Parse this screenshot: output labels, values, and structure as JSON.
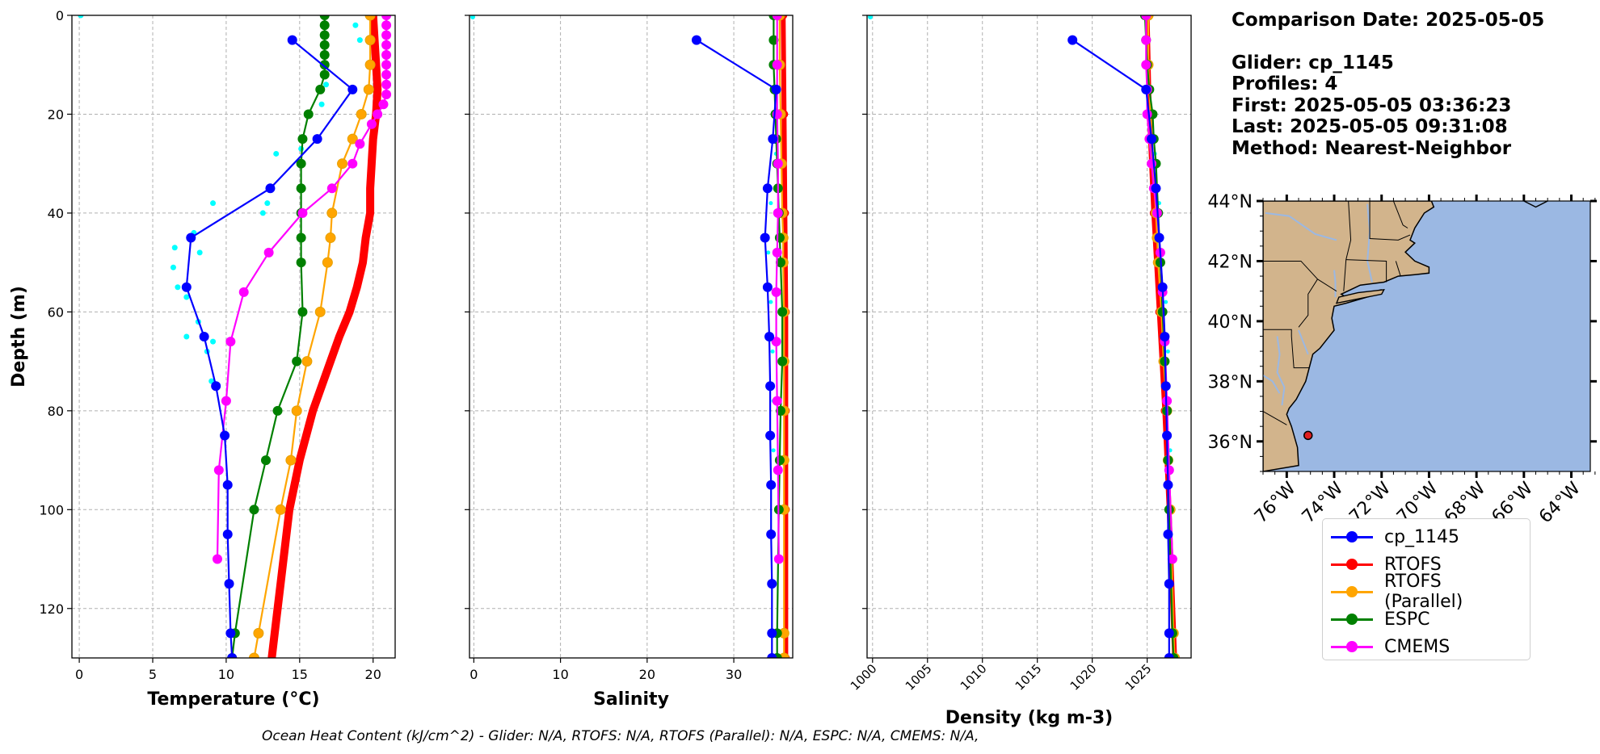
{
  "info": {
    "comparison_date": "Comparison Date: 2025-05-05",
    "glider": "Glider: cp_1145",
    "profiles": "Profiles: 4",
    "first": "First: 2025-05-05 03:36:23",
    "last": "Last: 2025-05-05 09:31:08",
    "method": "Method: Nearest-Neighbor"
  },
  "footer": "Ocean Heat Content (kJ/cm^2) - Glider: N/A,  RTOFS: N/A,  RTOFS (Parallel): N/A,  ESPC: N/A,  CMEMS: N/A,",
  "legend": [
    {
      "label": "cp_1145",
      "color": "#0000ff"
    },
    {
      "label": "RTOFS",
      "color": "#ff0000"
    },
    {
      "label": "RTOFS (Parallel)",
      "color": "#ffa500"
    },
    {
      "label": "ESPC",
      "color": "#008000"
    },
    {
      "label": "CMEMS",
      "color": "#ff00ff"
    }
  ],
  "map": {
    "lat_ticks": [
      "44°N",
      "42°N",
      "40°N",
      "38°N",
      "36°N"
    ],
    "lon_ticks": [
      "76°W",
      "74°W",
      "72°W",
      "70°W",
      "68°W",
      "66°W",
      "64°W"
    ],
    "glider_position": {
      "lon": -75.1,
      "lat": 36.2
    },
    "land_color": "#d2b48c",
    "ocean_color": "#9bb8e3"
  },
  "chart_data": [
    {
      "type": "line",
      "xlabel": "Temperature (°C)",
      "ylabel": "Depth (m)",
      "xlim": [
        -0.5,
        21.5
      ],
      "ylim": [
        130,
        0
      ],
      "x_ticks": [
        "0",
        "5",
        "10",
        "15",
        "20"
      ],
      "y_ticks": [
        "0",
        "20",
        "40",
        "60",
        "80",
        "100",
        "120"
      ],
      "grid": true,
      "series": [
        {
          "name": "cp_1145",
          "color": "#0000ff",
          "depth": [
            5,
            15,
            25,
            35,
            45,
            55,
            65,
            75,
            85,
            95,
            105,
            115,
            125,
            130
          ],
          "values": [
            14.5,
            18.6,
            16.2,
            13.0,
            7.6,
            7.3,
            8.5,
            9.3,
            9.9,
            10.1,
            10.1,
            10.2,
            10.3,
            10.4
          ]
        },
        {
          "name": "RTOFS",
          "color": "#ff0000",
          "depth": [
            0,
            5,
            10,
            15,
            20,
            25,
            30,
            35,
            40,
            45,
            50,
            55,
            60,
            65,
            70,
            80,
            90,
            100,
            115,
            125,
            130
          ],
          "values": [
            20.0,
            20.1,
            20.2,
            20.3,
            20.2,
            20.0,
            19.9,
            19.8,
            19.8,
            19.5,
            19.3,
            18.9,
            18.4,
            17.7,
            17.1,
            15.9,
            15.0,
            14.3,
            13.7,
            13.3,
            13.1
          ]
        },
        {
          "name": "RTOFS (Parallel)",
          "color": "#ffa500",
          "depth": [
            0,
            5,
            10,
            15,
            20,
            25,
            30,
            40,
            45,
            50,
            60,
            70,
            80,
            90,
            100,
            125,
            130
          ],
          "values": [
            19.8,
            19.8,
            19.8,
            19.7,
            19.2,
            18.6,
            17.9,
            17.2,
            17.1,
            16.9,
            16.4,
            15.5,
            14.8,
            14.4,
            13.7,
            12.2,
            11.9
          ]
        },
        {
          "name": "ESPC",
          "color": "#008000",
          "depth": [
            0,
            2,
            4,
            6,
            8,
            10,
            12,
            15,
            20,
            25,
            30,
            35,
            40,
            45,
            50,
            60,
            70,
            80,
            90,
            100,
            125,
            130
          ],
          "values": [
            16.7,
            16.7,
            16.7,
            16.7,
            16.7,
            16.7,
            16.7,
            16.4,
            15.6,
            15.2,
            15.1,
            15.1,
            15.1,
            15.1,
            15.1,
            15.2,
            14.8,
            13.5,
            12.7,
            11.9,
            10.6,
            10.4
          ]
        },
        {
          "name": "CMEMS",
          "color": "#ff00ff",
          "depth": [
            0,
            2,
            4,
            6,
            8,
            10,
            12,
            14,
            16,
            18,
            20,
            22,
            26,
            30,
            35,
            40,
            48,
            56,
            66,
            78,
            92,
            110
          ],
          "values": [
            20.9,
            20.9,
            20.9,
            20.9,
            20.9,
            20.9,
            20.9,
            20.9,
            20.9,
            20.7,
            20.3,
            19.9,
            19.1,
            18.6,
            17.2,
            15.2,
            12.9,
            11.2,
            10.3,
            10.0,
            9.5,
            9.4
          ]
        }
      ],
      "scatter_glider_raw": {
        "color": "#00ffff",
        "x": [
          0.1,
          18.8,
          19.1,
          16.8,
          16.5,
          13.4,
          15.1,
          15.1,
          9.1,
          12.8,
          12.5,
          7.8,
          6.5,
          8.2,
          6.4,
          6.7,
          7.3,
          8.1,
          7.3,
          9.1,
          8.7,
          9.0
        ],
        "y": [
          0,
          2,
          5,
          14,
          18,
          28,
          27,
          35,
          38,
          38,
          40,
          44,
          47,
          48,
          51,
          55,
          57,
          62,
          65,
          66,
          68,
          74
        ]
      }
    },
    {
      "type": "line",
      "xlabel": "Salinity",
      "xlim": [
        -0.5,
        36.8
      ],
      "ylim": [
        130,
        0
      ],
      "x_ticks": [
        "0",
        "10",
        "20",
        "30"
      ],
      "grid": true,
      "series": [
        {
          "name": "cp_1145",
          "color": "#0000ff",
          "depth": [
            5,
            15,
            25,
            35,
            45,
            55,
            65,
            75,
            85,
            95,
            105,
            115,
            125,
            130
          ],
          "values": [
            25.7,
            34.9,
            34.5,
            33.9,
            33.6,
            33.9,
            34.1,
            34.2,
            34.2,
            34.3,
            34.3,
            34.4,
            34.4,
            34.4
          ]
        },
        {
          "name": "RTOFS",
          "color": "#ff0000",
          "depth": [
            0,
            20,
            40,
            60,
            80,
            100,
            130
          ],
          "values": [
            35.7,
            35.8,
            35.9,
            36.0,
            36.0,
            36.0,
            36.0
          ]
        },
        {
          "name": "RTOFS (Parallel)",
          "color": "#ffa500",
          "depth": [
            0,
            10,
            20,
            30,
            40,
            45,
            50,
            60,
            70,
            80,
            90,
            100,
            125,
            130
          ],
          "values": [
            35.3,
            35.3,
            35.4,
            35.5,
            35.6,
            35.7,
            35.7,
            35.8,
            35.8,
            35.8,
            35.8,
            35.8,
            35.8,
            35.8
          ]
        },
        {
          "name": "ESPC",
          "color": "#008000",
          "depth": [
            0,
            5,
            10,
            15,
            20,
            25,
            30,
            35,
            40,
            45,
            50,
            60,
            70,
            80,
            90,
            100,
            125,
            130
          ],
          "values": [
            34.6,
            34.6,
            34.6,
            34.7,
            34.8,
            34.9,
            35.0,
            35.1,
            35.2,
            35.3,
            35.4,
            35.6,
            35.6,
            35.4,
            35.3,
            35.2,
            35.0,
            35.0
          ]
        },
        {
          "name": "CMEMS",
          "color": "#ff00ff",
          "depth": [
            0,
            10,
            20,
            30,
            40,
            48,
            56,
            66,
            78,
            92,
            110
          ],
          "values": [
            35.0,
            35.0,
            35.0,
            35.1,
            35.1,
            35.0,
            34.9,
            34.9,
            35.0,
            35.1,
            35.2
          ]
        }
      ]
    },
    {
      "type": "line",
      "xlabel": "Density (kg m-3)",
      "xlim": [
        999.5,
        1029.0
      ],
      "ylim": [
        130,
        0
      ],
      "x_ticks": [
        "1000",
        "1005",
        "1010",
        "1015",
        "1020",
        "1025"
      ],
      "grid": true,
      "series": [
        {
          "name": "cp_1145",
          "color": "#0000ff",
          "depth": [
            5,
            15,
            25,
            35,
            45,
            55,
            65,
            75,
            85,
            95,
            105,
            115,
            125,
            130
          ],
          "values": [
            1018.2,
            1024.9,
            1025.4,
            1025.8,
            1026.1,
            1026.4,
            1026.6,
            1026.7,
            1026.8,
            1026.9,
            1026.9,
            1027.0,
            1027.0,
            1027.0
          ]
        },
        {
          "name": "RTOFS",
          "color": "#ff0000",
          "depth": [
            0,
            20,
            40,
            60,
            80,
            100,
            130
          ],
          "values": [
            1025.0,
            1025.2,
            1025.6,
            1026.1,
            1026.6,
            1027.0,
            1027.5
          ]
        },
        {
          "name": "RTOFS (Parallel)",
          "color": "#ffa500",
          "depth": [
            0,
            10,
            20,
            30,
            40,
            45,
            50,
            60,
            70,
            80,
            90,
            100,
            125,
            130
          ],
          "values": [
            1025.1,
            1025.1,
            1025.3,
            1025.5,
            1025.8,
            1025.9,
            1026.0,
            1026.3,
            1026.5,
            1026.8,
            1026.9,
            1027.1,
            1027.4,
            1027.5
          ]
        },
        {
          "name": "ESPC",
          "color": "#008000",
          "depth": [
            0,
            5,
            10,
            15,
            20,
            25,
            30,
            40,
            50,
            60,
            70,
            80,
            90,
            100,
            125,
            130
          ],
          "values": [
            1024.8,
            1024.9,
            1025.0,
            1025.2,
            1025.5,
            1025.6,
            1025.8,
            1026.0,
            1026.2,
            1026.4,
            1026.6,
            1026.8,
            1026.9,
            1027.0,
            1027.3,
            1027.4
          ]
        },
        {
          "name": "CMEMS",
          "color": "#ff00ff",
          "depth": [
            0,
            5,
            10,
            15,
            20,
            25,
            30,
            35,
            40,
            48,
            56,
            66,
            78,
            92,
            110
          ],
          "values": [
            1024.9,
            1024.9,
            1024.9,
            1025.0,
            1025.0,
            1025.2,
            1025.4,
            1025.6,
            1025.9,
            1026.2,
            1026.4,
            1026.6,
            1026.8,
            1027.0,
            1027.3
          ]
        }
      ]
    }
  ]
}
